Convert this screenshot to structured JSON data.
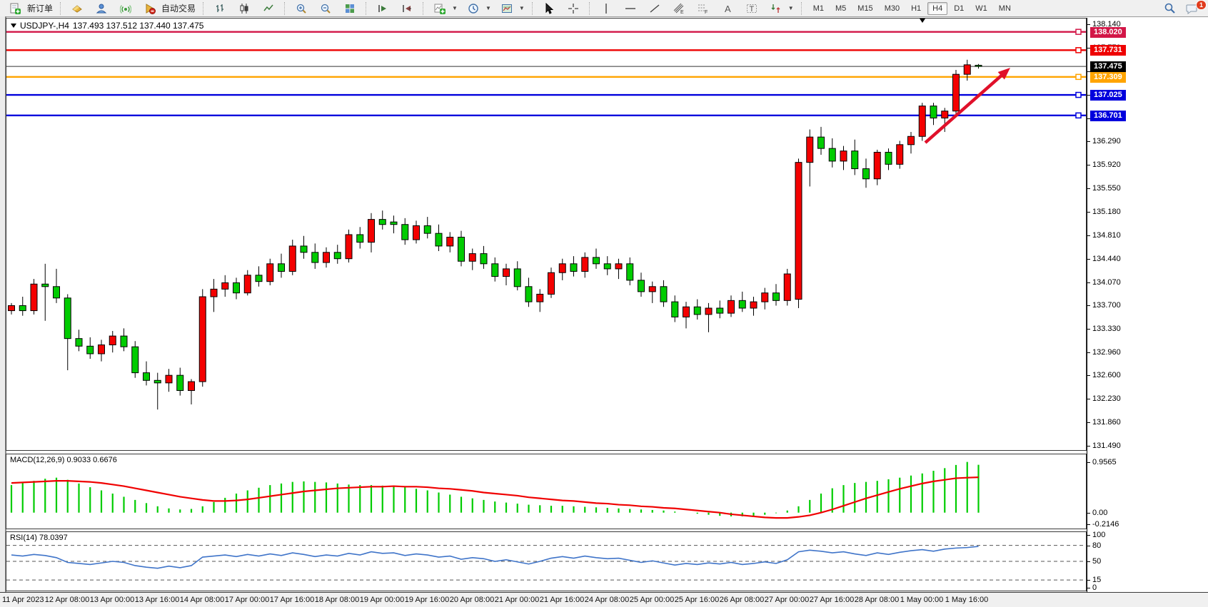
{
  "toolbar": {
    "groups": [
      {
        "items": [
          {
            "name": "new-order-button",
            "icon": "new-order-icon",
            "label": "新订单"
          }
        ]
      },
      {
        "items": [
          {
            "name": "metaeditor-button",
            "icon": "gold-icon"
          },
          {
            "name": "community-button",
            "icon": "person-icon"
          },
          {
            "name": "signals-button",
            "icon": "signal-icon"
          },
          {
            "name": "autotrading-button",
            "icon": "autotrading-icon",
            "label": "自动交易"
          }
        ]
      },
      {
        "items": [
          {
            "name": "bar-chart-button",
            "icon": "bar-chart-icon"
          },
          {
            "name": "candlestick-button",
            "icon": "candlestick-icon"
          },
          {
            "name": "line-chart-button",
            "icon": "line-chart-icon"
          }
        ]
      },
      {
        "items": [
          {
            "name": "zoom-in-button",
            "icon": "zoom-in-icon"
          },
          {
            "name": "zoom-out-button",
            "icon": "zoom-out-icon"
          },
          {
            "name": "tile-windows-button",
            "icon": "tile-windows-icon"
          }
        ]
      },
      {
        "items": [
          {
            "name": "auto-scroll-button",
            "icon": "auto-scroll-icon"
          },
          {
            "name": "chart-shift-button",
            "icon": "chart-shift-icon"
          }
        ]
      },
      {
        "items": [
          {
            "name": "indicators-button",
            "icon": "indicators-icon",
            "dropdown": true
          },
          {
            "name": "periods-button",
            "icon": "clock-icon",
            "dropdown": true
          },
          {
            "name": "templates-button",
            "icon": "template-icon",
            "dropdown": true
          }
        ]
      },
      {
        "items": [
          {
            "name": "cursor-button",
            "icon": "cursor-icon"
          },
          {
            "name": "crosshair-button",
            "icon": "crosshair-icon"
          }
        ]
      },
      {
        "items": [
          {
            "name": "vertical-line-button",
            "icon": "vline-icon"
          },
          {
            "name": "horizontal-line-button",
            "icon": "hline-icon"
          },
          {
            "name": "trendline-button",
            "icon": "trendline-icon"
          },
          {
            "name": "equidistant-channel-button",
            "icon": "channel-icon"
          },
          {
            "name": "fibonacci-button",
            "icon": "fibo-icon"
          },
          {
            "name": "text-button",
            "icon": "text-icon"
          },
          {
            "name": "label-button",
            "icon": "label-icon"
          },
          {
            "name": "arrows-button",
            "icon": "arrows-icon",
            "dropdown": true
          }
        ]
      }
    ],
    "timeframes": [
      "M1",
      "M5",
      "M15",
      "M30",
      "H1",
      "H4",
      "D1",
      "W1",
      "MN"
    ],
    "active_timeframe": "H4",
    "chat_badge": "1"
  },
  "chart": {
    "title_symbol": "USDJPY-,H4",
    "title_ohlc": "137.493 137.512 137.440 137.475"
  },
  "chart_data": {
    "type": "candlestick",
    "symbol": "USDJPY-",
    "timeframe": "H4",
    "current_bar": {
      "open": 137.493,
      "high": 137.512,
      "low": 137.44,
      "close": 137.475
    },
    "current_price_label": "137.475",
    "current_price": 137.475,
    "ylim": [
      131.42,
      138.23
    ],
    "price_axis_ticks": [
      "138.140",
      "137.770",
      "137.400",
      "137.030",
      "136.660",
      "136.290",
      "135.920",
      "135.550",
      "135.180",
      "134.810",
      "134.440",
      "134.070",
      "133.700",
      "133.330",
      "132.960",
      "132.600",
      "132.230",
      "131.860",
      "131.490"
    ],
    "levels": [
      {
        "label": "138.020",
        "value": 138.02,
        "color": "#d21647"
      },
      {
        "label": "137.731",
        "value": 137.731,
        "color": "#ee0000"
      },
      {
        "label": "137.309",
        "value": 137.309,
        "color": "#ffa400"
      },
      {
        "label": "137.025",
        "value": 137.025,
        "color": "#0000dd"
      },
      {
        "label": "136.701",
        "value": 136.701,
        "color": "#0000dd"
      }
    ],
    "colors": {
      "bull": "#f40000",
      "bear": "#00cc00",
      "wick": "#000000",
      "macd_hist": "#00cc00",
      "macd_signal": "#f00000",
      "rsi_line": "#3f74c9"
    },
    "time_labels": [
      "11 Apr 2023",
      "12 Apr 08:00",
      "13 Apr 00:00",
      "13 Apr 16:00",
      "14 Apr 08:00",
      "17 Apr 00:00",
      "17 Apr 16:00",
      "18 Apr 08:00",
      "19 Apr 00:00",
      "19 Apr 16:00",
      "20 Apr 08:00",
      "21 Apr 00:00",
      "21 Apr 16:00",
      "24 Apr 08:00",
      "25 Apr 00:00",
      "25 Apr 16:00",
      "26 Apr 08:00",
      "27 Apr 00:00",
      "27 Apr 16:00",
      "28 Apr 08:00",
      "1 May 00:00",
      "1 May 16:00"
    ],
    "candles": [
      [
        133.62,
        133.74,
        133.56,
        133.7
      ],
      [
        133.7,
        133.84,
        133.54,
        133.62
      ],
      [
        133.62,
        134.12,
        133.56,
        134.04
      ],
      [
        134.04,
        134.36,
        133.46,
        134.0
      ],
      [
        134.0,
        134.28,
        133.74,
        133.82
      ],
      [
        133.82,
        133.88,
        132.68,
        133.18
      ],
      [
        133.18,
        133.32,
        132.98,
        133.06
      ],
      [
        133.06,
        133.2,
        132.86,
        132.94
      ],
      [
        132.94,
        133.16,
        132.82,
        133.08
      ],
      [
        133.08,
        133.3,
        132.96,
        133.22
      ],
      [
        133.22,
        133.34,
        132.98,
        133.05
      ],
      [
        133.05,
        133.14,
        132.56,
        132.64
      ],
      [
        132.64,
        132.82,
        132.44,
        132.52
      ],
      [
        132.52,
        132.64,
        132.06,
        132.48
      ],
      [
        132.48,
        132.7,
        132.34,
        132.6
      ],
      [
        132.6,
        132.72,
        132.28,
        132.36
      ],
      [
        132.36,
        132.54,
        132.14,
        132.5
      ],
      [
        132.5,
        133.96,
        132.42,
        133.84
      ],
      [
        133.84,
        134.12,
        133.6,
        133.96
      ],
      [
        133.96,
        134.18,
        133.84,
        134.06
      ],
      [
        134.06,
        134.14,
        133.8,
        133.9
      ],
      [
        133.9,
        134.26,
        133.86,
        134.18
      ],
      [
        134.18,
        134.32,
        134.0,
        134.08
      ],
      [
        134.08,
        134.44,
        134.02,
        134.36
      ],
      [
        134.36,
        134.52,
        134.14,
        134.24
      ],
      [
        134.24,
        134.74,
        134.18,
        134.64
      ],
      [
        134.64,
        134.8,
        134.44,
        134.54
      ],
      [
        134.54,
        134.68,
        134.28,
        134.38
      ],
      [
        134.38,
        134.62,
        134.3,
        134.54
      ],
      [
        134.54,
        134.66,
        134.36,
        134.44
      ],
      [
        134.44,
        134.9,
        134.38,
        134.82
      ],
      [
        134.82,
        134.94,
        134.6,
        134.7
      ],
      [
        134.7,
        135.16,
        134.54,
        135.06
      ],
      [
        135.06,
        135.2,
        134.9,
        134.98
      ],
      [
        135.02,
        135.12,
        134.84,
        134.98
      ],
      [
        134.98,
        135.08,
        134.66,
        134.74
      ],
      [
        134.74,
        135.04,
        134.68,
        134.96
      ],
      [
        134.96,
        135.1,
        134.76,
        134.84
      ],
      [
        134.84,
        134.98,
        134.56,
        134.64
      ],
      [
        134.64,
        134.86,
        134.54,
        134.78
      ],
      [
        134.78,
        134.88,
        134.32,
        134.4
      ],
      [
        134.4,
        134.6,
        134.26,
        134.52
      ],
      [
        134.52,
        134.64,
        134.28,
        134.36
      ],
      [
        134.36,
        134.46,
        134.08,
        134.16
      ],
      [
        134.16,
        134.36,
        134.02,
        134.28
      ],
      [
        134.28,
        134.4,
        133.94,
        134.0
      ],
      [
        134.0,
        134.14,
        133.68,
        133.76
      ],
      [
        133.76,
        133.96,
        133.6,
        133.88
      ],
      [
        133.88,
        134.3,
        133.82,
        134.22
      ],
      [
        134.22,
        134.44,
        134.1,
        134.36
      ],
      [
        134.36,
        134.48,
        134.16,
        134.24
      ],
      [
        134.24,
        134.54,
        134.14,
        134.46
      ],
      [
        134.46,
        134.6,
        134.28,
        134.36
      ],
      [
        134.36,
        134.48,
        134.18,
        134.28
      ],
      [
        134.28,
        134.44,
        134.12,
        134.36
      ],
      [
        134.36,
        134.46,
        134.02,
        134.1
      ],
      [
        134.1,
        134.22,
        133.84,
        133.92
      ],
      [
        133.92,
        134.08,
        133.74,
        134.0
      ],
      [
        134.0,
        134.1,
        133.68,
        133.76
      ],
      [
        133.76,
        133.86,
        133.44,
        133.52
      ],
      [
        133.52,
        133.76,
        133.34,
        133.68
      ],
      [
        133.68,
        133.8,
        133.48,
        133.56
      ],
      [
        133.56,
        133.74,
        133.28,
        133.66
      ],
      [
        133.66,
        133.78,
        133.5,
        133.58
      ],
      [
        133.58,
        133.86,
        133.52,
        133.78
      ],
      [
        133.78,
        133.92,
        133.6,
        133.66
      ],
      [
        133.66,
        133.84,
        133.54,
        133.76
      ],
      [
        133.76,
        133.98,
        133.64,
        133.9
      ],
      [
        133.9,
        134.04,
        133.7,
        133.78
      ],
      [
        133.78,
        134.28,
        133.7,
        134.2
      ],
      [
        133.8,
        136.02,
        133.66,
        135.96
      ],
      [
        135.96,
        136.48,
        135.58,
        136.36
      ],
      [
        136.36,
        136.52,
        136.08,
        136.18
      ],
      [
        136.18,
        136.34,
        135.88,
        135.98
      ],
      [
        135.98,
        136.22,
        135.84,
        136.14
      ],
      [
        136.14,
        136.32,
        135.76,
        135.86
      ],
      [
        135.86,
        136.02,
        135.56,
        135.7
      ],
      [
        135.7,
        136.16,
        135.6,
        136.12
      ],
      [
        136.12,
        136.18,
        135.84,
        135.93
      ],
      [
        135.93,
        136.3,
        135.86,
        136.24
      ],
      [
        136.24,
        136.44,
        136.1,
        136.37
      ],
      [
        136.37,
        136.9,
        136.3,
        136.85
      ],
      [
        136.85,
        136.9,
        136.55,
        136.66
      ],
      [
        136.66,
        136.82,
        136.44,
        136.77
      ],
      [
        136.77,
        137.42,
        136.7,
        137.35
      ],
      [
        137.35,
        137.58,
        137.25,
        137.5
      ],
      [
        137.493,
        137.512,
        137.44,
        137.475
      ]
    ],
    "macd": {
      "label": "MACD(12,26,9) 0.9033 0.6676",
      "axis_ticks": [
        "0.9565",
        "0.00",
        "-0.2146"
      ],
      "ylim": [
        -0.3,
        1.1
      ],
      "hist": [
        0.52,
        0.56,
        0.6,
        0.64,
        0.66,
        0.62,
        0.55,
        0.48,
        0.42,
        0.36,
        0.3,
        0.24,
        0.18,
        0.12,
        0.08,
        0.06,
        0.07,
        0.12,
        0.2,
        0.28,
        0.36,
        0.42,
        0.47,
        0.52,
        0.55,
        0.58,
        0.59,
        0.58,
        0.57,
        0.55,
        0.53,
        0.52,
        0.52,
        0.51,
        0.5,
        0.48,
        0.45,
        0.42,
        0.38,
        0.34,
        0.3,
        0.27,
        0.24,
        0.21,
        0.19,
        0.17,
        0.15,
        0.14,
        0.13,
        0.13,
        0.12,
        0.11,
        0.1,
        0.09,
        0.08,
        0.07,
        0.06,
        0.05,
        0.04,
        0.02,
        0.0,
        -0.02,
        -0.04,
        -0.06,
        -0.07,
        -0.07,
        -0.06,
        -0.04,
        -0.01,
        0.04,
        0.12,
        0.24,
        0.36,
        0.46,
        0.52,
        0.56,
        0.58,
        0.6,
        0.63,
        0.66,
        0.7,
        0.74,
        0.79,
        0.84,
        0.9,
        0.9565,
        0.9033
      ],
      "signal": [
        0.56,
        0.57,
        0.58,
        0.59,
        0.6,
        0.6,
        0.59,
        0.58,
        0.56,
        0.53,
        0.5,
        0.46,
        0.42,
        0.38,
        0.34,
        0.3,
        0.27,
        0.24,
        0.22,
        0.22,
        0.23,
        0.25,
        0.28,
        0.31,
        0.34,
        0.37,
        0.4,
        0.42,
        0.44,
        0.46,
        0.47,
        0.48,
        0.49,
        0.49,
        0.5,
        0.49,
        0.49,
        0.48,
        0.46,
        0.45,
        0.43,
        0.41,
        0.38,
        0.36,
        0.34,
        0.32,
        0.29,
        0.27,
        0.25,
        0.23,
        0.22,
        0.2,
        0.18,
        0.17,
        0.15,
        0.14,
        0.12,
        0.11,
        0.09,
        0.08,
        0.06,
        0.04,
        0.02,
        0.0,
        -0.03,
        -0.05,
        -0.07,
        -0.09,
        -0.1,
        -0.1,
        -0.08,
        -0.05,
        0.0,
        0.06,
        0.13,
        0.2,
        0.27,
        0.33,
        0.39,
        0.45,
        0.5,
        0.55,
        0.59,
        0.62,
        0.65,
        0.66,
        0.6676
      ]
    },
    "rsi": {
      "label": "RSI(14) 78.0397",
      "axis_ticks": [
        "100",
        "80",
        "50",
        "15",
        "0"
      ],
      "dashed_levels": [
        80,
        50,
        15
      ],
      "ylim": [
        -5,
        105
      ],
      "values": [
        62,
        60,
        63,
        61,
        57,
        48,
        46,
        44,
        47,
        50,
        48,
        42,
        39,
        37,
        41,
        38,
        42,
        58,
        60,
        62,
        59,
        63,
        60,
        64,
        61,
        66,
        63,
        59,
        62,
        60,
        65,
        62,
        68,
        65,
        66,
        61,
        64,
        62,
        58,
        60,
        54,
        57,
        55,
        50,
        53,
        49,
        45,
        50,
        56,
        59,
        56,
        60,
        57,
        55,
        56,
        52,
        48,
        51,
        47,
        43,
        46,
        44,
        47,
        45,
        48,
        44,
        46,
        49,
        46,
        53,
        68,
        71,
        69,
        66,
        68,
        64,
        61,
        66,
        63,
        67,
        70,
        72,
        69,
        73,
        75,
        76,
        78.04
      ]
    },
    "annotation_arrow": {
      "from": [
        1287,
        174
      ],
      "to": [
        1406,
        69
      ],
      "color": "#e0102a"
    }
  }
}
